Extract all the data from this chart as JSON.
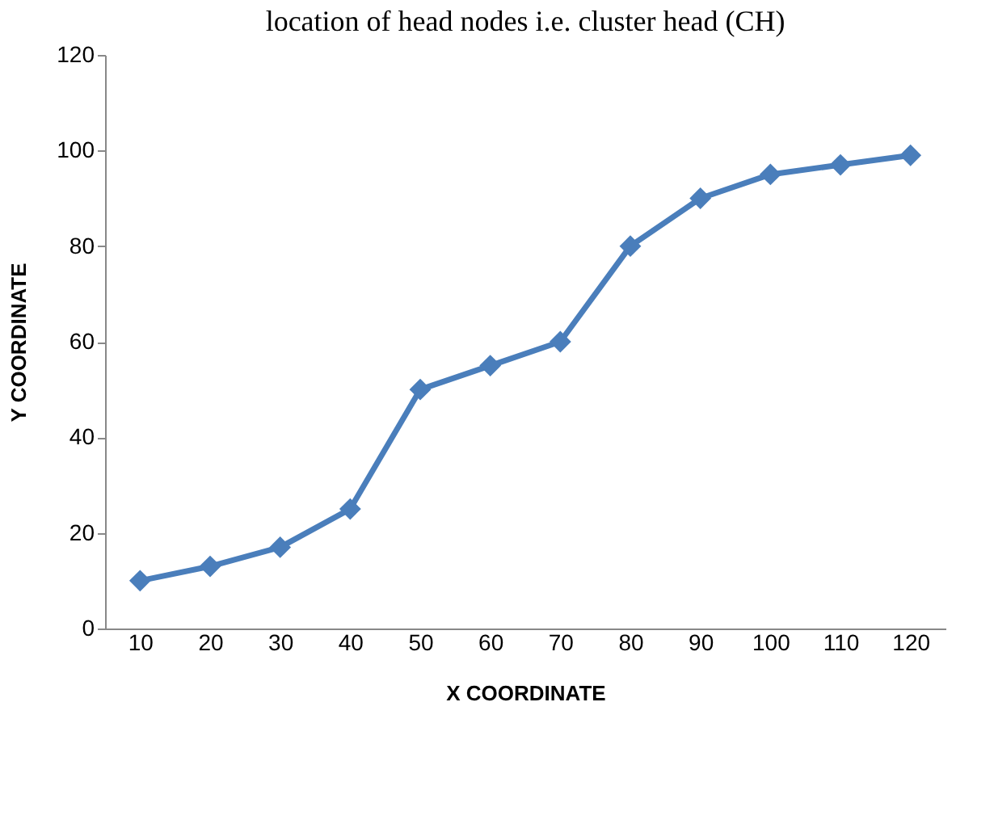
{
  "chart_data": {
    "type": "line",
    "title": "location of head nodes i.e. cluster head (CH)",
    "xlabel": "X COORDINATE",
    "ylabel": "Y COORDINATE",
    "categories": [
      "10",
      "20",
      "30",
      "40",
      "50",
      "60",
      "70",
      "80",
      "90",
      "100",
      "110",
      "120"
    ],
    "series": [
      {
        "color": "#4a7ebb",
        "values": [
          10,
          13,
          17,
          25,
          50,
          55,
          60,
          80,
          90,
          95,
          97,
          99
        ]
      }
    ],
    "ylim": [
      0,
      120
    ],
    "yticks": [
      0,
      20,
      40,
      60,
      80,
      100,
      120
    ],
    "grid": false,
    "legend": false,
    "marker": "diamond",
    "line_style": "solid"
  }
}
